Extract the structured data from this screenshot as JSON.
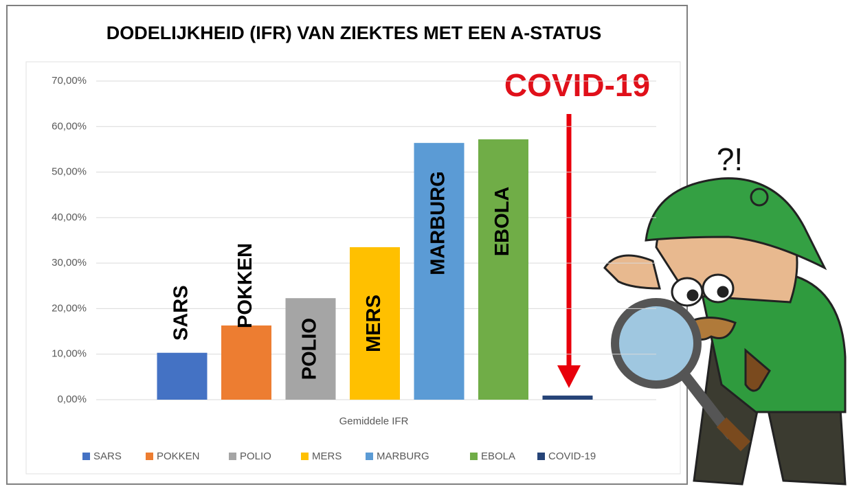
{
  "chart_data": {
    "type": "bar",
    "title": "DODELIJKHEID (IFR) VAN ZIEKTES MET EEN A-STATUS",
    "x_label": "Gemiddele IFR",
    "annotations": [
      "COVID-19",
      "?!"
    ],
    "categories": [
      "SARS",
      "POKKEN",
      "POLIO",
      "MERS",
      "MARBURG",
      "EBOLA",
      "COVID-19"
    ],
    "values": [
      10.3,
      16.3,
      22.3,
      33.5,
      56.4,
      57.2,
      0.9
    ],
    "colors": [
      "#4472c4",
      "#ed7d31",
      "#a5a5a5",
      "#ffc000",
      "#5b9bd5",
      "#70ad47",
      "#264478"
    ],
    "ylim": [
      0,
      70
    ],
    "yticks": [
      {
        "value": 0,
        "label": "0,00%"
      },
      {
        "value": 10,
        "label": "10,00%"
      },
      {
        "value": 20,
        "label": "20,00%"
      },
      {
        "value": 30,
        "label": "30,00%"
      },
      {
        "value": 40,
        "label": "40,00%"
      },
      {
        "value": 50,
        "label": "50,00%"
      },
      {
        "value": 60,
        "label": "60,00%"
      },
      {
        "value": 70,
        "label": "70,00%"
      }
    ],
    "grid": true,
    "legend": "bottom"
  }
}
